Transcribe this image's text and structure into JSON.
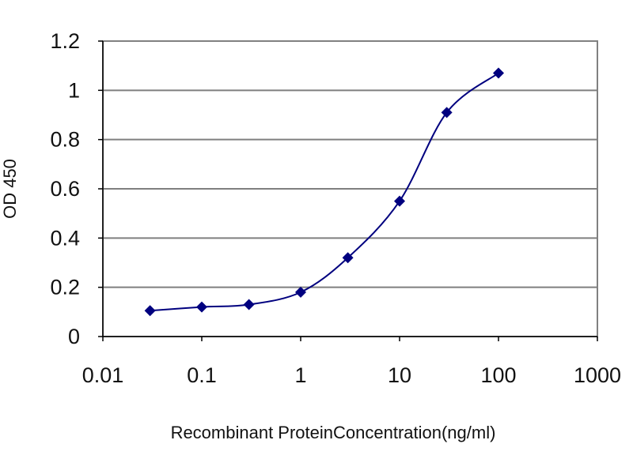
{
  "chart_data": {
    "type": "line",
    "title": "",
    "xlabel": "Recombinant ProteinConcentration(ng/ml)",
    "ylabel": "OD 450",
    "x_scale": "log",
    "xlim": [
      0.01,
      1000
    ],
    "ylim": [
      0,
      1.2
    ],
    "x_ticks": [
      0.01,
      0.1,
      1,
      10,
      100,
      1000
    ],
    "x_tick_labels": [
      "0.01",
      "0.1",
      "1",
      "10",
      "100",
      "1000"
    ],
    "y_ticks": [
      0,
      0.2,
      0.4,
      0.6,
      0.8,
      1,
      1.2
    ],
    "y_tick_labels": [
      "0",
      "0.2",
      "0.4",
      "0.6",
      "0.8",
      "1",
      "1.2"
    ],
    "grid": "horizontal",
    "legend": "none",
    "series": [
      {
        "x": [
          0.03,
          0.1,
          0.3,
          1,
          3,
          10,
          30,
          100
        ],
        "y": [
          0.105,
          0.12,
          0.13,
          0.18,
          0.32,
          0.55,
          0.91,
          1.07
        ],
        "color": "#00007f",
        "marker": "diamond"
      }
    ],
    "colors": {
      "plot_background": "#ffffff",
      "gridline": "#7f7f7f",
      "frame": "#808080",
      "axis": "#000000"
    }
  }
}
